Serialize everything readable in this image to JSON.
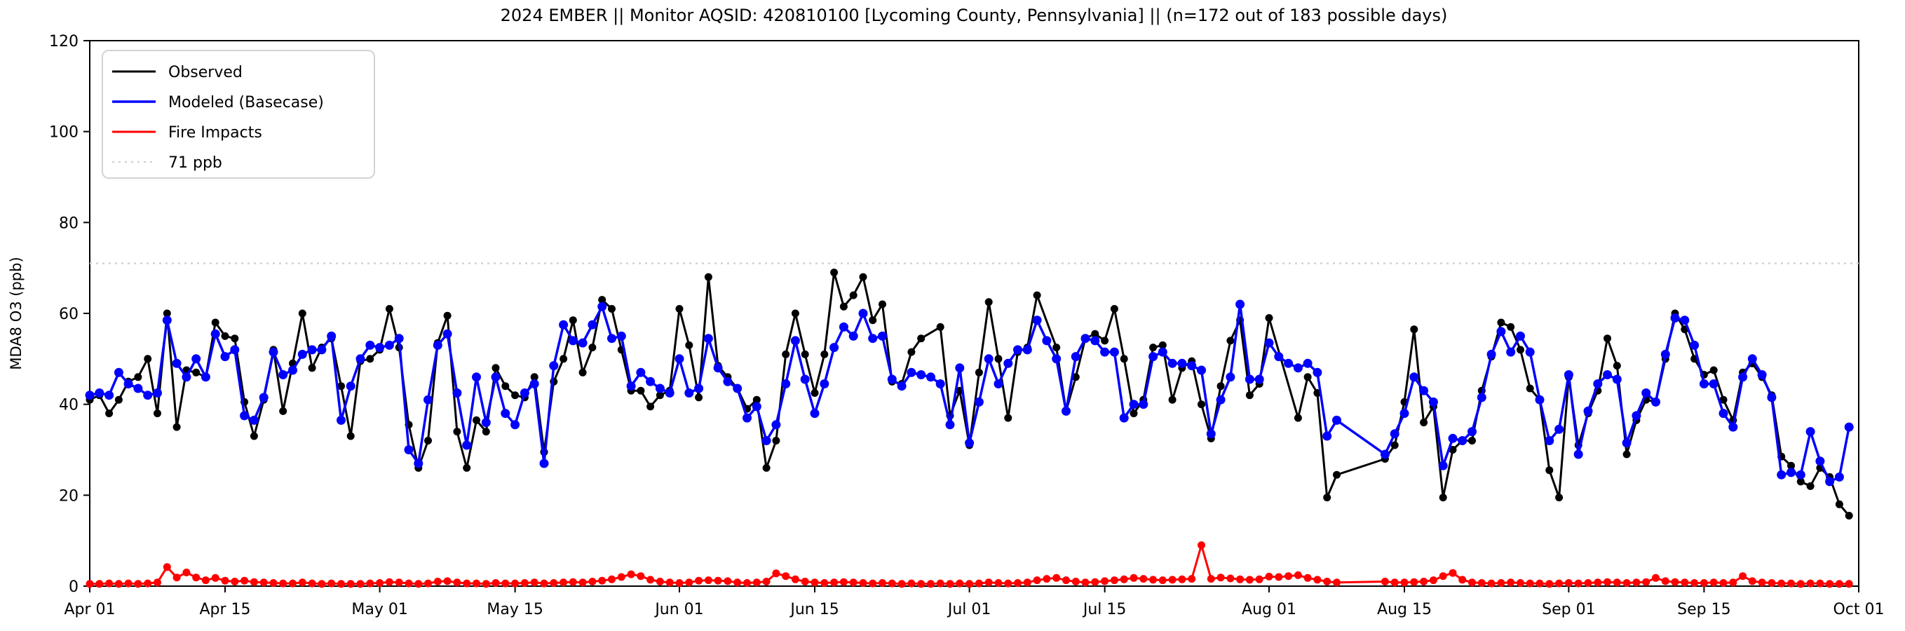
{
  "chart_data": {
    "type": "line",
    "title": "2024 EMBER || Monitor AQSID: 420810100 [Lycoming County, Pennsylvania] || (n=172 out of 183 possible days)",
    "ylabel": "MDA8 O3 (ppb)",
    "ylim": [
      0,
      120
    ],
    "yticks": [
      0,
      20,
      40,
      60,
      80,
      100,
      120
    ],
    "x_total_days": 183,
    "xticks": [
      {
        "day": 0,
        "label": "Apr 01"
      },
      {
        "day": 14,
        "label": "Apr 15"
      },
      {
        "day": 30,
        "label": "May 01"
      },
      {
        "day": 44,
        "label": "May 15"
      },
      {
        "day": 61,
        "label": "Jun 01"
      },
      {
        "day": 75,
        "label": "Jun 15"
      },
      {
        "day": 91,
        "label": "Jul 01"
      },
      {
        "day": 105,
        "label": "Jul 15"
      },
      {
        "day": 122,
        "label": "Aug 01"
      },
      {
        "day": 136,
        "label": "Aug 15"
      },
      {
        "day": 153,
        "label": "Sep 01"
      },
      {
        "day": 167,
        "label": "Sep 15"
      },
      {
        "day": 183,
        "label": "Oct 01"
      }
    ],
    "grid": false,
    "legend_position": "upper-left",
    "legend": [
      "Observed",
      "Modeled (Basecase)",
      "Fire Impacts",
      "71 ppb"
    ],
    "threshold": {
      "value": 71,
      "label": "71 ppb",
      "color": "#d3d3d3"
    },
    "series": [
      {
        "name": "Observed",
        "color": "#000000",
        "values": [
          41,
          42,
          38,
          41,
          45,
          46,
          50,
          38,
          60,
          35,
          47.5,
          47,
          46,
          58,
          55,
          54.5,
          40.5,
          33,
          41,
          52,
          38.5,
          49,
          60,
          48,
          52.5,
          54.5,
          44,
          33,
          49.5,
          50,
          52,
          61,
          52.5,
          35.5,
          26,
          32,
          53.5,
          59.5,
          34,
          26,
          36.5,
          34,
          48,
          44,
          42,
          41.5,
          46,
          29.5,
          45,
          50,
          58.5,
          47,
          52.5,
          63,
          61,
          52,
          43,
          43,
          39.5,
          42,
          43,
          61,
          53,
          41.5,
          68,
          48.5,
          46,
          43.5,
          39,
          41,
          26,
          32,
          51,
          60,
          51,
          42.5,
          51,
          69,
          61.5,
          64,
          68,
          58.5,
          62,
          45,
          44.5,
          51.5,
          54.5,
          null,
          57,
          37.5,
          43,
          31,
          47,
          62.5,
          50,
          37,
          51.5,
          52.5,
          64,
          null,
          52.5,
          38.5,
          46,
          54.5,
          55.5,
          54,
          61,
          50,
          38,
          41,
          52.5,
          53,
          41,
          48,
          49.5,
          40,
          32.5,
          44,
          54,
          58.5,
          42,
          44.5,
          59,
          null,
          null,
          37,
          46,
          42.5,
          19.5,
          24.5,
          null,
          null,
          null,
          null,
          28,
          31,
          40.5,
          56.5,
          36,
          39.5,
          19.5,
          30,
          32,
          32,
          43,
          50.5,
          58,
          57,
          52,
          43.5,
          41,
          25.5,
          19.5,
          46,
          31,
          38,
          43,
          54.5,
          48.5,
          29,
          36.5,
          41,
          40.5,
          50,
          60,
          56.5,
          50,
          46.5,
          47.5,
          41,
          36.5,
          47,
          49,
          46,
          42,
          28.5,
          26.5,
          23,
          22,
          26,
          24,
          18,
          15.5
        ]
      },
      {
        "name": "Modeled (Basecase)",
        "color": "#0000ff",
        "values": [
          42,
          42.5,
          42,
          47,
          44.5,
          43.5,
          42,
          42.5,
          58.5,
          49,
          46,
          50,
          46,
          55.5,
          50.5,
          52,
          37.5,
          36.5,
          41.5,
          51.5,
          46.5,
          47.5,
          51,
          52,
          52,
          55,
          36.5,
          44,
          50,
          53,
          52.5,
          53,
          54.5,
          30,
          27,
          41,
          53,
          55.5,
          42.5,
          31,
          46,
          36,
          46,
          38,
          35.5,
          42.5,
          44.5,
          27,
          48.5,
          57.5,
          54,
          53.5,
          57.5,
          61.5,
          54.5,
          55,
          44,
          47,
          45,
          43.5,
          42.5,
          50,
          42.5,
          43.5,
          54.5,
          48,
          45,
          43.5,
          37,
          39.5,
          32,
          35.5,
          44.5,
          54,
          45.5,
          38,
          44.5,
          52.5,
          57,
          55,
          60,
          54.5,
          55,
          45.5,
          44,
          47,
          46.5,
          46,
          44.5,
          35.5,
          48,
          31.5,
          40.5,
          50,
          44.5,
          49,
          52,
          52,
          58.5,
          54,
          50,
          38.5,
          50.5,
          54.5,
          54,
          51.5,
          51.5,
          37,
          40,
          40,
          50.5,
          51.5,
          49,
          49,
          48.5,
          47.5,
          33.5,
          41,
          46,
          62,
          45.5,
          45.5,
          53.5,
          50.5,
          49,
          48,
          49,
          47,
          33,
          36.5,
          null,
          null,
          null,
          null,
          29,
          33.5,
          38,
          46,
          43,
          40.5,
          26.5,
          32.5,
          32,
          34,
          41.5,
          51,
          56,
          51.5,
          55,
          51.5,
          41,
          32,
          34.5,
          46.5,
          29,
          38.5,
          44.5,
          46.5,
          45.5,
          31.5,
          37.5,
          42.5,
          40.5,
          51,
          59,
          58.5,
          53,
          44.5,
          44.5,
          38,
          35,
          46,
          50,
          46.5,
          41.5,
          24.5,
          25,
          24.5,
          34,
          27.5,
          23,
          24,
          35
        ]
      },
      {
        "name": "Fire Impacts",
        "color": "#ff0000",
        "values": [
          0.5,
          0.5,
          0.6,
          0.5,
          0.6,
          0.5,
          0.6,
          0.8,
          4.2,
          1.9,
          3.0,
          1.9,
          1.3,
          1.8,
          1.2,
          1.0,
          1.2,
          0.9,
          0.8,
          0.7,
          0.6,
          0.6,
          0.8,
          0.6,
          0.5,
          0.6,
          0.5,
          0.5,
          0.5,
          0.6,
          0.7,
          0.9,
          0.8,
          0.6,
          0.5,
          0.6,
          1.0,
          1.1,
          0.8,
          0.6,
          0.6,
          0.5,
          0.7,
          0.6,
          0.6,
          0.7,
          0.8,
          0.6,
          0.7,
          0.8,
          0.9,
          0.8,
          1.0,
          1.2,
          1.5,
          2.0,
          2.6,
          2.2,
          1.4,
          1.0,
          0.8,
          0.7,
          0.8,
          1.2,
          1.3,
          1.2,
          1.1,
          0.8,
          0.7,
          0.8,
          1.0,
          2.8,
          2.2,
          1.5,
          1.0,
          0.8,
          0.7,
          0.8,
          0.9,
          0.8,
          0.7,
          0.6,
          0.7,
          0.6,
          0.5,
          0.6,
          0.5,
          0.5,
          0.6,
          0.5,
          0.6,
          0.5,
          0.6,
          0.8,
          0.7,
          0.6,
          0.7,
          0.8,
          1.3,
          1.6,
          1.8,
          1.3,
          1.0,
          0.8,
          0.9,
          1.1,
          1.3,
          1.5,
          1.8,
          1.6,
          1.4,
          1.3,
          1.4,
          1.5,
          1.6,
          9.0,
          1.6,
          1.9,
          1.7,
          1.5,
          1.4,
          1.5,
          2.1,
          2.0,
          2.2,
          2.4,
          1.8,
          1.4,
          1.0,
          0.8,
          null,
          null,
          null,
          null,
          1.0,
          0.8,
          0.8,
          0.9,
          1.0,
          1.3,
          2.2,
          2.9,
          1.4,
          0.8,
          0.7,
          0.6,
          0.7,
          0.8,
          0.7,
          0.6,
          0.6,
          0.5,
          0.6,
          0.7,
          0.6,
          0.7,
          0.8,
          0.9,
          0.8,
          0.7,
          0.8,
          0.9,
          1.8,
          1.1,
          0.9,
          0.8,
          0.7,
          0.7,
          0.8,
          0.7,
          0.8,
          2.2,
          1.1,
          0.8,
          0.7,
          0.6,
          0.6,
          0.5,
          0.6,
          0.6,
          0.5,
          0.5,
          0.5
        ]
      }
    ]
  }
}
